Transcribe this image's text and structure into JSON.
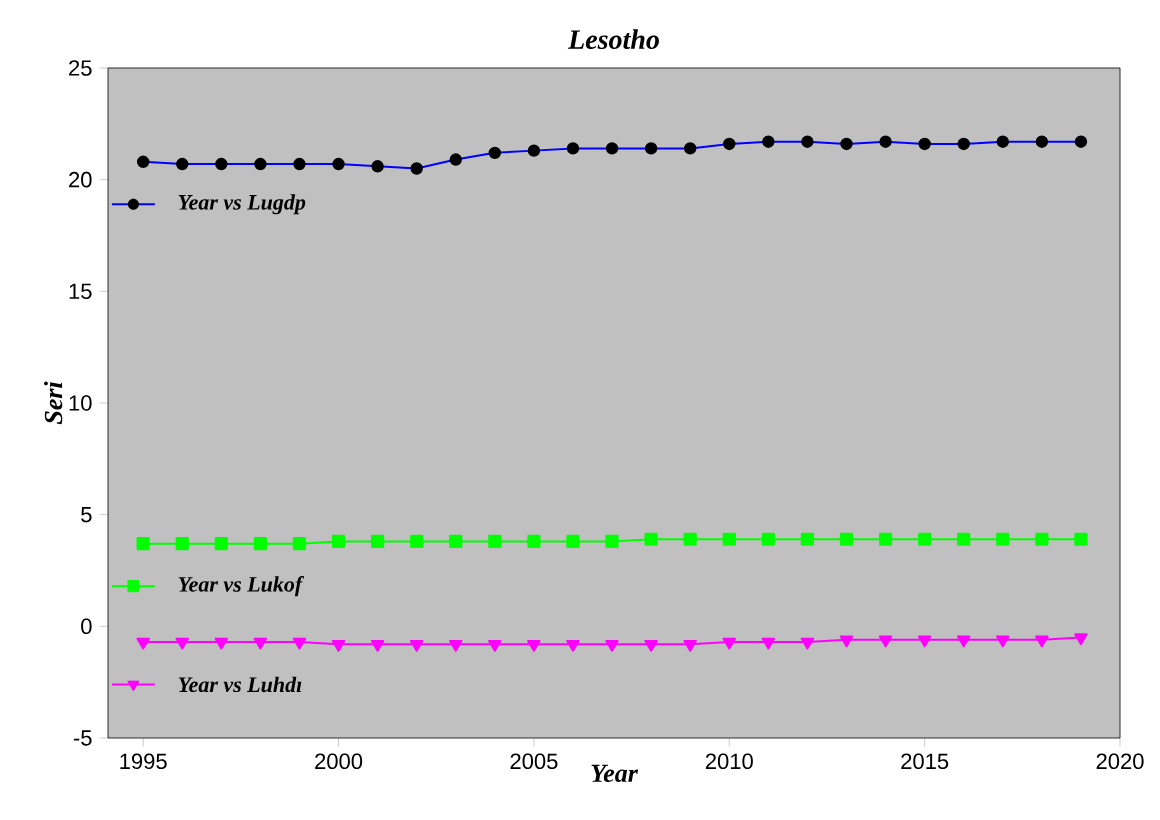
{
  "chart_data": {
    "type": "line",
    "title": "Lesotho",
    "xlabel": "Year",
    "ylabel": "Seri",
    "x": [
      1995,
      1996,
      1997,
      1998,
      1999,
      2000,
      2001,
      2002,
      2003,
      2004,
      2005,
      2006,
      2007,
      2008,
      2009,
      2010,
      2011,
      2012,
      2013,
      2014,
      2015,
      2016,
      2017,
      2018,
      2019
    ],
    "series": [
      {
        "name": "Year vs Lugdp",
        "color": "#0000ff",
        "marker": "circle",
        "values": [
          20.8,
          20.7,
          20.7,
          20.7,
          20.7,
          20.7,
          20.6,
          20.5,
          20.9,
          21.2,
          21.3,
          21.4,
          21.4,
          21.4,
          21.4,
          21.6,
          21.7,
          21.7,
          21.6,
          21.7,
          21.6,
          21.6,
          21.7,
          21.7,
          21.7
        ]
      },
      {
        "name": "Year vs Lukof",
        "color": "#00ff00",
        "marker": "square",
        "values": [
          3.7,
          3.7,
          3.7,
          3.7,
          3.7,
          3.8,
          3.8,
          3.8,
          3.8,
          3.8,
          3.8,
          3.8,
          3.8,
          3.9,
          3.9,
          3.9,
          3.9,
          3.9,
          3.9,
          3.9,
          3.9,
          3.9,
          3.9,
          3.9,
          3.9
        ]
      },
      {
        "name": "Year vs Luhdı",
        "color": "#ff00ff",
        "marker": "triangle",
        "values": [
          -0.7,
          -0.7,
          -0.7,
          -0.7,
          -0.7,
          -0.8,
          -0.8,
          -0.8,
          -0.8,
          -0.8,
          -0.8,
          -0.8,
          -0.8,
          -0.8,
          -0.8,
          -0.7,
          -0.7,
          -0.7,
          -0.6,
          -0.6,
          -0.6,
          -0.6,
          -0.6,
          -0.6,
          -0.5
        ]
      }
    ],
    "xlim": [
      1994.1,
      2020
    ],
    "ylim": [
      -5,
      25
    ],
    "xticks": [
      1995,
      2000,
      2005,
      2010,
      2015,
      2020
    ],
    "yticks": [
      -5,
      0,
      5,
      10,
      15,
      20,
      25
    ],
    "grid": false,
    "legend": "left",
    "line_style": "solid"
  }
}
